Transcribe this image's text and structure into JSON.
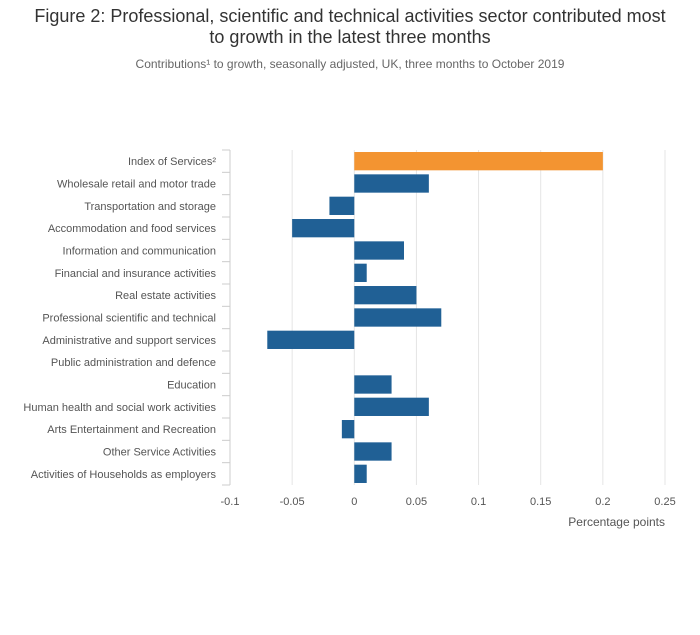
{
  "title": "Figure 2: Professional, scientific and technical activities sector contributed most to growth in the latest three months",
  "subtitle": "Contributions¹ to growth, seasonally adjusted, UK, three months to October 2019",
  "colors": {
    "highlight": "#f39431",
    "bar": "#206095",
    "grid": "#e5e5e5",
    "axis": "#cccccc"
  },
  "chart_data": {
    "type": "bar",
    "orientation": "horizontal",
    "categories": [
      "Index of Services²",
      "Wholesale retail and motor trade",
      "Transportation and storage",
      "Accommodation and food services",
      "Information and communication",
      "Financial and insurance activities",
      "Real estate activities",
      "Professional scientific and technical",
      "Administrative and support services",
      "Public administration and defence",
      "Education",
      "Human health and social work activities",
      "Arts Entertainment and Recreation",
      "Other Service Activities",
      "Activities of Households as employers"
    ],
    "values": [
      0.2,
      0.06,
      -0.02,
      -0.05,
      0.04,
      0.01,
      0.05,
      0.07,
      -0.07,
      0,
      0.03,
      0.06,
      -0.01,
      0.03,
      0.01
    ],
    "highlight_index": 0,
    "xlabel": "Percentage points",
    "ylabel": "",
    "xlim": [
      -0.1,
      0.25
    ],
    "xticks": [
      -0.1,
      -0.05,
      0,
      0.05,
      0.1,
      0.15,
      0.2,
      0.25
    ],
    "xtick_labels": [
      "-0.1",
      "-0.05",
      "0",
      "0.05",
      "0.1",
      "0.15",
      "0.2",
      "0.25"
    ],
    "grid": true,
    "legend": "none"
  }
}
